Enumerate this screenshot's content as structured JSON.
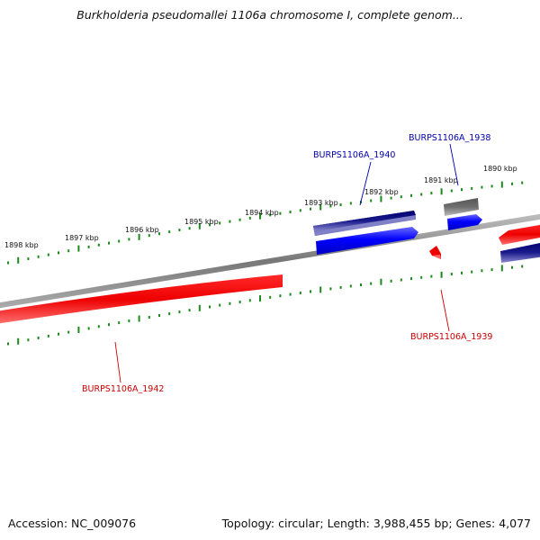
{
  "title": "Burkholderia pseudomallei 1106a chromosome I, complete genom...",
  "footer": {
    "accession_label": "Accession:",
    "accession": "NC_009076",
    "topology_text": "Topology: circular; Length: 3,988,455 bp; Genes: 4,077"
  },
  "ticks": [
    "1898 kbp",
    "1897 kbp",
    "1896 kbp",
    "1895 kbp",
    "1894 kbp",
    "1893 kbp",
    "1892 kbp",
    "1891 kbp",
    "1890 kbp"
  ],
  "genes": [
    {
      "id": "BURPS1106A_1940",
      "color": "#0000aa"
    },
    {
      "id": "BURPS1106A_1938",
      "color": "#0000aa"
    },
    {
      "id": "BURPS1106A_1939",
      "color": "#cc0000"
    },
    {
      "id": "BURPS1106A_1942",
      "color": "#cc0000"
    }
  ],
  "colors": {
    "forward_strand": "#0000ff",
    "reverse_strand": "#ff0000",
    "navy_strand": "#1a1a8c",
    "grey_feature": "#666666",
    "backbone": "#888888",
    "tick_green": "#1a8a1a"
  }
}
